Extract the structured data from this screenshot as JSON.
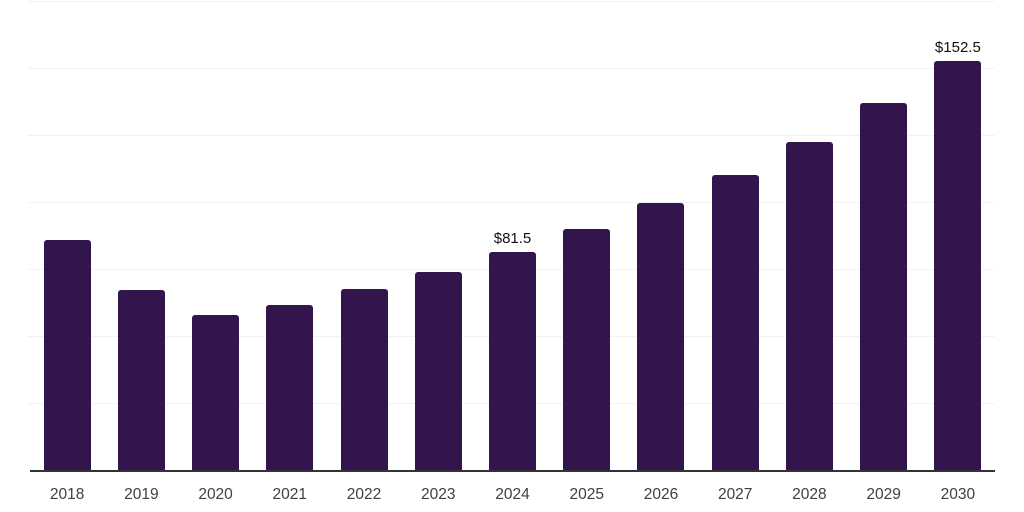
{
  "chart_data": {
    "type": "bar",
    "title": "",
    "xlabel": "",
    "ylabel": "",
    "categories": [
      "2018",
      "2019",
      "2020",
      "2021",
      "2022",
      "2023",
      "2024",
      "2025",
      "2026",
      "2027",
      "2028",
      "2029",
      "2030"
    ],
    "values": [
      86.0,
      67.0,
      58.0,
      61.5,
      67.5,
      74.0,
      81.5,
      90.0,
      99.5,
      110.0,
      122.5,
      137.0,
      152.5
    ],
    "data_labels": {
      "2024": "$81.5",
      "2030": "$152.5"
    },
    "ylim": [
      0,
      175
    ],
    "grid_step": 25,
    "grid": true,
    "legend": "none",
    "currency_prefix": "$",
    "colors": {
      "bar": "#33154d",
      "axis_line": "#333333",
      "gridline": "#f2f2f4",
      "tick_label": "#404040",
      "data_label": "#111111",
      "background": "#ffffff"
    }
  }
}
